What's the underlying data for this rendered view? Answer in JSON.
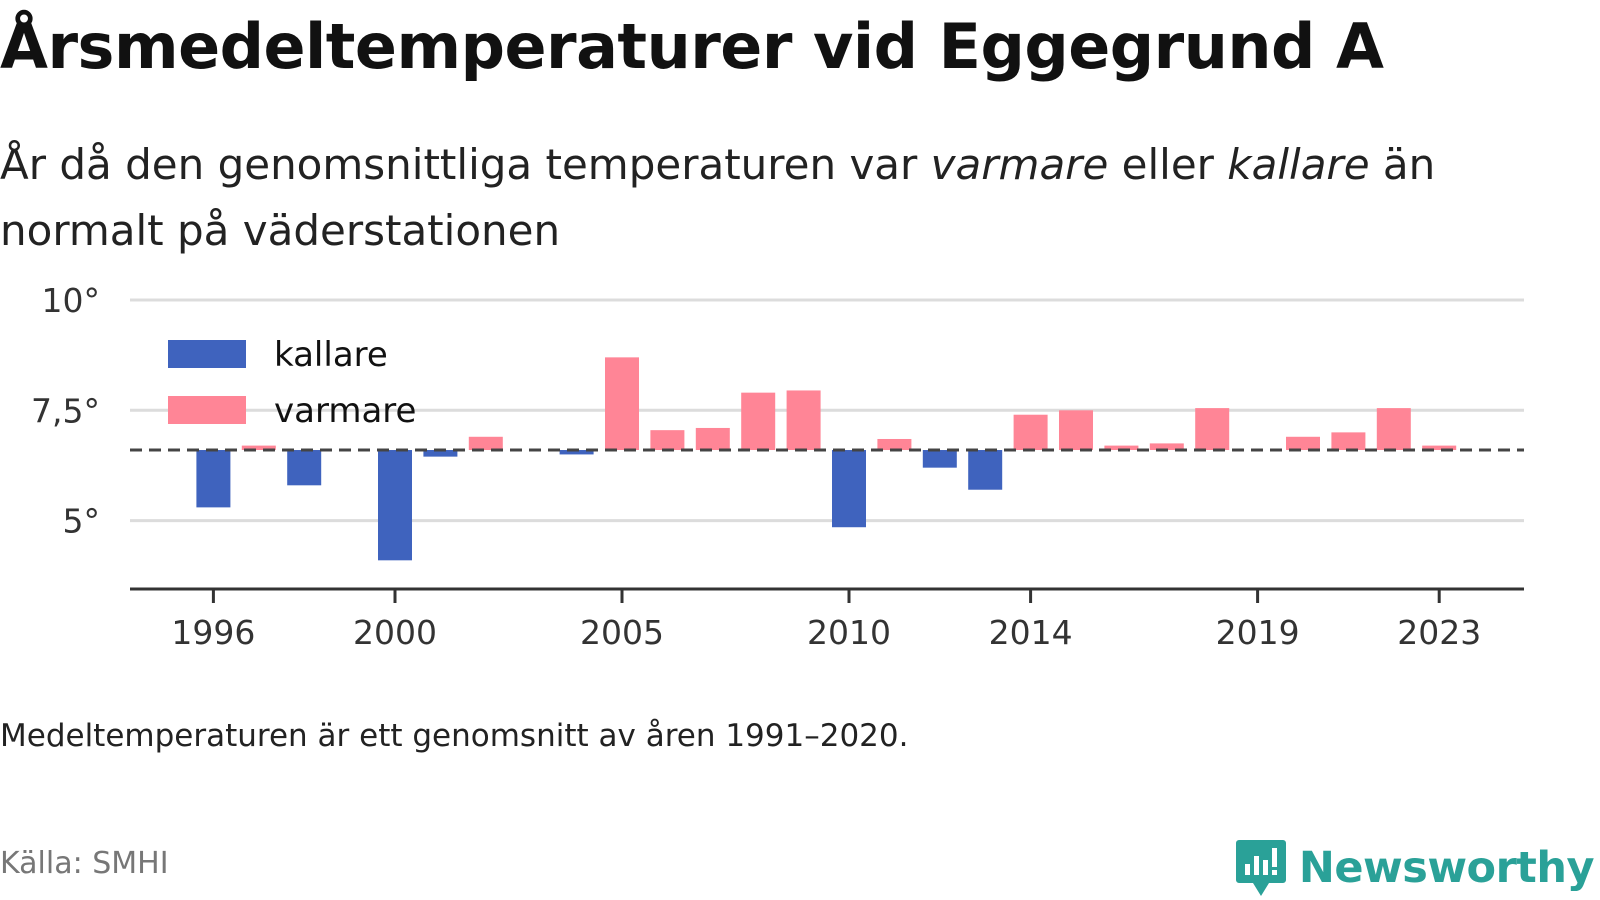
{
  "header": {
    "title": "Årsmedeltemperaturer vid Eggegrund A",
    "subtitle_part1": "År då den genomsnittliga temperaturen var ",
    "subtitle_em1": "varmare",
    "subtitle_part2": " eller ",
    "subtitle_em2": "kallare",
    "subtitle_part3": " än normalt på väderstationen"
  },
  "footer": {
    "note": "Medeltemperaturen är ett genomsnitt av åren 1991–2020.",
    "source": "Källa: SMHI",
    "brand": "Newsworthy"
  },
  "chart_data": {
    "type": "bar",
    "title": "Årsmedeltemperaturer vid Eggegrund A",
    "baseline": 6.6,
    "baseline_style": "dashed",
    "ylim": [
      3.45,
      10
    ],
    "yticks": [
      5,
      7.5,
      10
    ],
    "ytick_labels": [
      "5°",
      "7,5°",
      "10°"
    ],
    "xticks": [
      1996,
      2000,
      2005,
      2010,
      2014,
      2019,
      2023
    ],
    "grid": "horizontal",
    "legend_position": "top-left",
    "colors": {
      "kallare": "#3f63be",
      "varmare": "#ff8596",
      "baseline": "#444444",
      "grid": "#dcdcdc",
      "axis": "#333333"
    },
    "legend": [
      {
        "key": "kallare",
        "label": "kallare"
      },
      {
        "key": "varmare",
        "label": "varmare"
      }
    ],
    "years": [
      1996,
      1997,
      1998,
      1999,
      2000,
      2001,
      2002,
      2003,
      2004,
      2005,
      2006,
      2007,
      2008,
      2009,
      2010,
      2011,
      2012,
      2013,
      2014,
      2015,
      2016,
      2017,
      2018,
      2019,
      2020,
      2021,
      2022,
      2023
    ],
    "values": [
      5.3,
      6.7,
      5.8,
      null,
      4.1,
      6.45,
      6.9,
      null,
      6.5,
      8.7,
      7.05,
      7.1,
      7.9,
      7.95,
      4.85,
      6.85,
      6.2,
      5.7,
      7.4,
      7.5,
      6.7,
      6.75,
      7.55,
      null,
      6.9,
      7.0,
      7.55,
      6.7
    ]
  }
}
